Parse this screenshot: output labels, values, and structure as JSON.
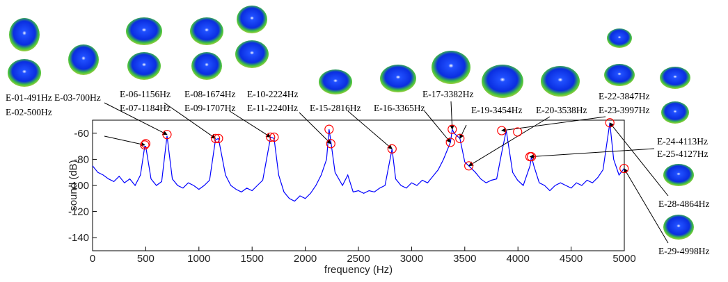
{
  "chart_data": {
    "type": "line",
    "x_label": "frequency (Hz)",
    "y_label": "sound (dB)",
    "xlim": [
      0,
      5000
    ],
    "ylim": [
      -150,
      -50
    ],
    "xticks": [
      0,
      500,
      1000,
      1500,
      2000,
      2500,
      3000,
      3500,
      4000,
      4500,
      5000
    ],
    "yticks": [
      -140,
      -120,
      -100,
      -80,
      -60
    ],
    "series": [
      {
        "color": "#0000ff",
        "x": [
          0,
          50,
          100,
          150,
          200,
          250,
          300,
          350,
          400,
          450,
          491,
          500,
          550,
          600,
          650,
          700,
          750,
          800,
          850,
          900,
          950,
          1000,
          1050,
          1100,
          1156,
          1184,
          1250,
          1300,
          1350,
          1400,
          1450,
          1500,
          1550,
          1600,
          1674,
          1707,
          1750,
          1800,
          1850,
          1900,
          1950,
          2000,
          2050,
          2100,
          2150,
          2200,
          2224,
          2240,
          2280,
          2350,
          2400,
          2450,
          2500,
          2550,
          2600,
          2650,
          2700,
          2750,
          2816,
          2850,
          2900,
          2950,
          3000,
          3050,
          3100,
          3150,
          3200,
          3250,
          3300,
          3365,
          3382,
          3400,
          3454,
          3500,
          3538,
          3600,
          3650,
          3700,
          3750,
          3800,
          3847,
          3890,
          3950,
          3997,
          4050,
          4113,
          4127,
          4150,
          4200,
          4250,
          4300,
          4350,
          4400,
          4450,
          4500,
          4550,
          4600,
          4650,
          4700,
          4750,
          4800,
          4864,
          4900,
          4950,
          4998
        ],
        "values": [
          -85,
          -90,
          -92,
          -95,
          -97,
          -93,
          -98,
          -95,
          -100,
          -92,
          -70,
          -70,
          -95,
          -100,
          -97,
          -62,
          -95,
          -100,
          -102,
          -98,
          -100,
          -103,
          -100,
          -96,
          -65,
          -64,
          -92,
          -100,
          -103,
          -105,
          -102,
          -104,
          -100,
          -96,
          -63,
          -64,
          -92,
          -105,
          -110,
          -112,
          -108,
          -110,
          -106,
          -100,
          -92,
          -80,
          -57,
          -66,
          -90,
          -100,
          -92,
          -105,
          -104,
          -106,
          -104,
          -105,
          -102,
          -100,
          -72,
          -95,
          -100,
          -102,
          -98,
          -100,
          -96,
          -98,
          -93,
          -88,
          -80,
          -67,
          -57,
          -60,
          -64,
          -82,
          -85,
          -90,
          -95,
          -98,
          -96,
          -95,
          -75,
          -58,
          -90,
          -96,
          -100,
          -85,
          -78,
          -85,
          -98,
          -100,
          -104,
          -100,
          -98,
          -100,
          -102,
          -98,
          -100,
          -96,
          -98,
          -94,
          -88,
          -52,
          -80,
          -92,
          -87
        ]
      }
    ],
    "annotations": [
      {
        "label": "E-01-491Hz",
        "x": 491,
        "y": -69
      },
      {
        "label": "E-02-500Hz",
        "x": 500,
        "y": -68
      },
      {
        "label": "E-03-700Hz",
        "x": 700,
        "y": -61
      },
      {
        "label": "E-06-1156Hz",
        "x": 1156,
        "y": -64
      },
      {
        "label": "E-07-1184Hz",
        "x": 1184,
        "y": -64
      },
      {
        "label": "E-08-1674Hz",
        "x": 1674,
        "y": -63
      },
      {
        "label": "E-09-1707Hz",
        "x": 1707,
        "y": -63
      },
      {
        "label": "E-10-2224Hz",
        "x": 2224,
        "y": -57
      },
      {
        "label": "E-11-2240Hz",
        "x": 2240,
        "y": -68
      },
      {
        "label": "E-15-2816Hz",
        "x": 2816,
        "y": -72
      },
      {
        "label": "E-16-3365Hz",
        "x": 3365,
        "y": -67
      },
      {
        "label": "E-17-3382Hz",
        "x": 3382,
        "y": -57
      },
      {
        "label": "E-19-3454Hz",
        "x": 3454,
        "y": -64
      },
      {
        "label": "E-20-3538Hz",
        "x": 3538,
        "y": -85
      },
      {
        "label": "E-22-3847Hz",
        "x": 3847,
        "y": -58
      },
      {
        "label": "E-23-3997Hz",
        "x": 3997,
        "y": -59
      },
      {
        "label": "E-24-4113Hz",
        "x": 4113,
        "y": -78
      },
      {
        "label": "E-25-4127Hz",
        "x": 4127,
        "y": -78
      },
      {
        "label": "E-28-4864Hz",
        "x": 4864,
        "y": -52
      },
      {
        "label": "E-29-4998Hz",
        "x": 4998,
        "y": -87
      }
    ]
  }
}
